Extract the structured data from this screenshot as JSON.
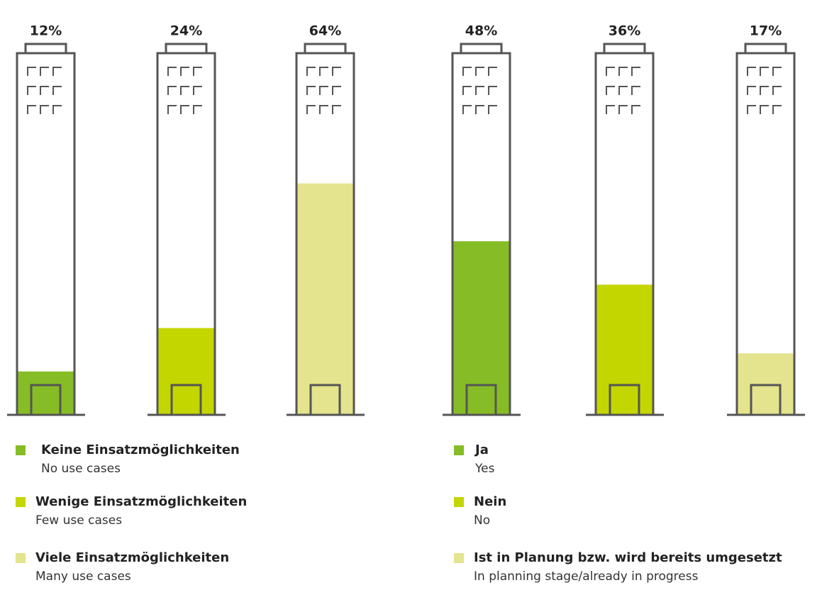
{
  "chart_data": [
    {
      "type": "bar",
      "ylim": [
        0,
        100
      ],
      "series": [
        {
          "name": "Keine Einsatzmöglichkeiten",
          "subtitle": "No use cases",
          "color": "#86bc25",
          "values": [
            12
          ],
          "value_labels": [
            "12%"
          ]
        },
        {
          "name": "Wenige Einsatzmöglichkeiten",
          "subtitle": "Few use cases",
          "color": "#c4d600",
          "values": [
            24
          ],
          "value_labels": [
            "24%"
          ]
        },
        {
          "name": "Viele Einsatzmöglichkeiten",
          "subtitle": "Many use cases",
          "color": "#e3e48d",
          "values": [
            64
          ],
          "value_labels": [
            "64%"
          ]
        }
      ]
    },
    {
      "type": "bar",
      "ylim": [
        0,
        100
      ],
      "series": [
        {
          "name": "Ja",
          "subtitle": "Yes",
          "color": "#86bc25",
          "values": [
            48
          ],
          "value_labels": [
            "48%"
          ]
        },
        {
          "name": "Nein",
          "subtitle": "No",
          "color": "#c4d600",
          "values": [
            36
          ],
          "value_labels": [
            "36%"
          ]
        },
        {
          "name": "Ist in Planung bzw. wird bereits umgesetzt",
          "subtitle": "In planning stage/already in progress",
          "color": "#e3e48d",
          "values": [
            17
          ],
          "value_labels": [
            "17%"
          ]
        }
      ]
    }
  ]
}
